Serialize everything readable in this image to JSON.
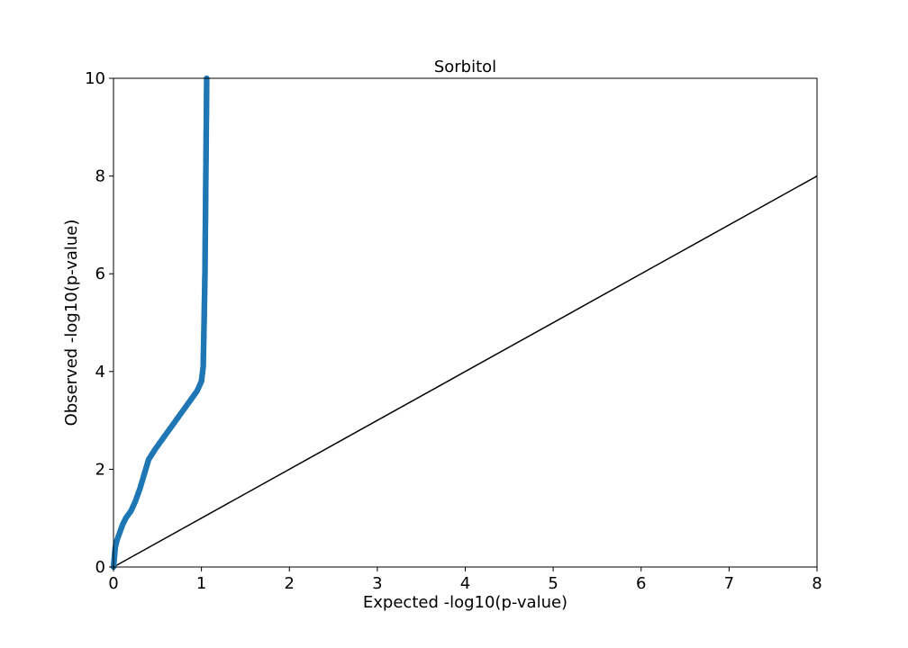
{
  "chart_data": {
    "type": "scatter",
    "title": "Sorbitol",
    "xlabel": "Expected -log10(p-value)",
    "ylabel": "Observed -log10(p-value)",
    "xlim": [
      0,
      8
    ],
    "ylim": [
      0,
      10
    ],
    "xticks": [
      "0",
      "1",
      "2",
      "3",
      "4",
      "5",
      "6",
      "7",
      "8"
    ],
    "yticks": [
      "0",
      "2",
      "4",
      "6",
      "8",
      "10"
    ],
    "grid": false,
    "series": [
      {
        "kind": "points",
        "color": "#1f77b4",
        "points": [
          [
            0.0,
            0.0
          ],
          [
            0.01,
            0.2
          ],
          [
            0.02,
            0.4
          ],
          [
            0.04,
            0.55
          ],
          [
            0.07,
            0.7
          ],
          [
            0.1,
            0.85
          ],
          [
            0.14,
            1.0
          ],
          [
            0.2,
            1.15
          ],
          [
            0.25,
            1.35
          ],
          [
            0.3,
            1.6
          ],
          [
            0.35,
            1.9
          ],
          [
            0.4,
            2.2
          ],
          [
            0.47,
            2.4
          ],
          [
            0.55,
            2.6
          ],
          [
            0.65,
            2.85
          ],
          [
            0.75,
            3.1
          ],
          [
            0.85,
            3.35
          ],
          [
            0.95,
            3.6
          ],
          [
            1.0,
            3.8
          ],
          [
            1.02,
            4.1
          ],
          [
            1.03,
            5.0
          ],
          [
            1.04,
            6.0
          ],
          [
            1.045,
            7.0
          ],
          [
            1.05,
            8.0
          ],
          [
            1.055,
            9.0
          ],
          [
            1.06,
            10.0
          ]
        ]
      },
      {
        "kind": "reference-line",
        "color": "#000000",
        "points": [
          [
            0,
            0
          ],
          [
            8,
            8
          ]
        ]
      }
    ]
  }
}
